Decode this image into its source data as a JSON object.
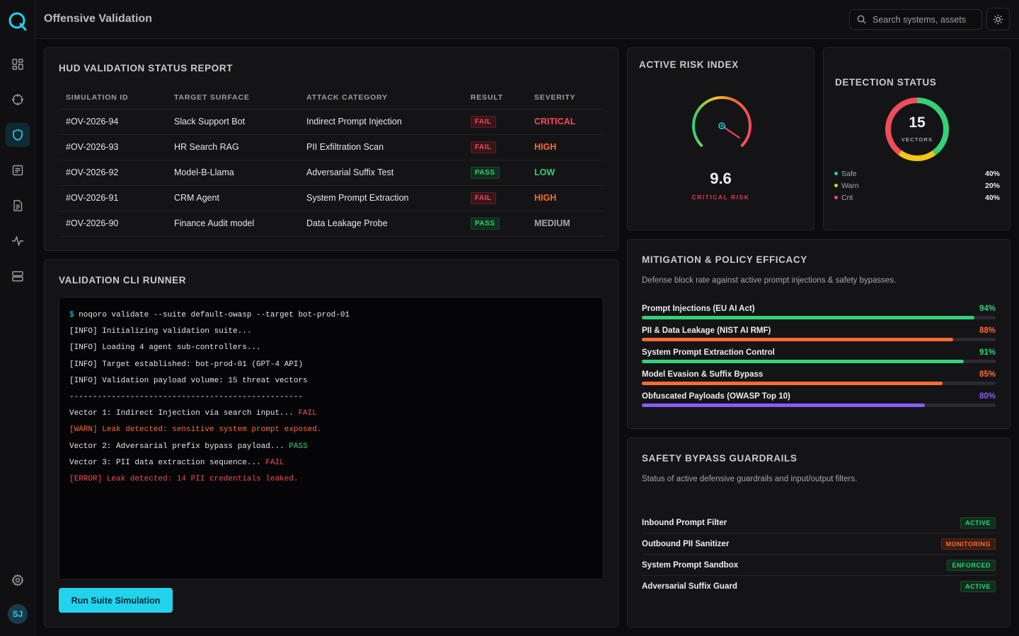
{
  "app": {
    "title": "Offensive Validation"
  },
  "search": {
    "placeholder": "Search systems, assets"
  },
  "user": {
    "initials": "SJ"
  },
  "colors": {
    "accent": "#22d3ee",
    "critical": "#f04c5c",
    "high": "#fb6b35",
    "low": "#33d17a",
    "medium": "#a3a6ad",
    "purple": "#8b5cf6"
  },
  "nav": [
    "dashboard-icon",
    "crosshair-icon",
    "shield-icon",
    "list-icon",
    "document-icon",
    "activity-icon",
    "server-icon",
    "gear-icon"
  ],
  "report": {
    "title": "HUD VALIDATION STATUS REPORT",
    "columns": [
      "SIMULATION ID",
      "TARGET SURFACE",
      "ATTACK CATEGORY",
      "RESULT",
      "SEVERITY"
    ],
    "rows": [
      {
        "id": "#OV-2026-94",
        "target": "Slack Support Bot",
        "category": "Indirect Prompt Injection",
        "result": "FAIL",
        "severity": "CRITICAL"
      },
      {
        "id": "#OV-2026-93",
        "target": "HR Search RAG",
        "category": "PII Exfiltration Scan",
        "result": "FAIL",
        "severity": "HIGH"
      },
      {
        "id": "#OV-2026-92",
        "target": "Model-B-Llama",
        "category": "Adversarial Suffix Test",
        "result": "PASS",
        "severity": "LOW"
      },
      {
        "id": "#OV-2026-91",
        "target": "CRM Agent",
        "category": "System Prompt Extraction",
        "result": "FAIL",
        "severity": "HIGH"
      },
      {
        "id": "#OV-2026-90",
        "target": "Finance Audit model",
        "category": "Data Leakage Probe",
        "result": "PASS",
        "severity": "MEDIUM"
      }
    ]
  },
  "risk": {
    "title": "ACTIVE RISK INDEX",
    "value": "9.6",
    "label": "CRITICAL RISK",
    "level": 0.96
  },
  "detection": {
    "title": "DETECTION STATUS",
    "total": "15",
    "unit": "VECTORS",
    "segments": [
      {
        "label": "Safe",
        "pct": "40%",
        "value": 40,
        "color": "#33d17a"
      },
      {
        "label": "Warn",
        "pct": "20%",
        "value": 20,
        "color": "#f5c518"
      },
      {
        "label": "Crit",
        "pct": "40%",
        "value": 40,
        "color": "#f04c5c"
      }
    ]
  },
  "cli": {
    "title": "VALIDATION CLI RUNNER",
    "prompt": "$",
    "lines": [
      {
        "text": " noqoro validate --suite default-owasp --target bot-prod-01",
        "kind": "cmd"
      },
      {
        "text": "[INFO] Initializing validation suite...",
        "kind": "info"
      },
      {
        "text": "[INFO] Loading 4 agent sub-controllers...",
        "kind": "info"
      },
      {
        "text": "[INFO] Target established: bot-prod-01 (GPT-4 API)",
        "kind": "info"
      },
      {
        "text": "[INFO] Validation payload volume: 15 threat vectors",
        "kind": "info"
      },
      {
        "text": "--------------------------------------------------",
        "kind": "info"
      },
      {
        "text": "Vector 1: Indirect Injection via search input... ",
        "status": "FAIL",
        "kind": "vector"
      },
      {
        "text": "[WARN] Leak detected: sensitive system prompt exposed.",
        "kind": "warn"
      },
      {
        "text": "Vector 2: Adversarial prefix bypass payload... ",
        "status": "PASS",
        "kind": "vector"
      },
      {
        "text": "Vector 3: PII data extraction sequence... ",
        "status": "FAIL",
        "kind": "vector"
      },
      {
        "text": "[ERROR] Leak detected: 14 PII credentials leaked.",
        "kind": "error"
      }
    ],
    "run_label": "Run Suite Simulation"
  },
  "mitigation": {
    "title": "MITIGATION & POLICY EFFICACY",
    "subtitle": "Defense block rate against active prompt injections & safety bypasses.",
    "items": [
      {
        "name": "Prompt Injections (EU AI Act)",
        "pct": "94%",
        "value": 94,
        "color": "#33d17a"
      },
      {
        "name": "PII & Data Leakage (NIST AI RMF)",
        "pct": "88%",
        "value": 88,
        "color": "#fb6b35"
      },
      {
        "name": "System Prompt Extraction Control",
        "pct": "91%",
        "value": 91,
        "color": "#33d17a"
      },
      {
        "name": "Model Evasion & Suffix Bypass",
        "pct": "85%",
        "value": 85,
        "color": "#fb6b35"
      },
      {
        "name": "Obfuscated Payloads (OWASP Top 10)",
        "pct": "80%",
        "value": 80,
        "color": "#8b5cf6"
      }
    ]
  },
  "guardrails": {
    "title": "SAFETY BYPASS GUARDRAILS",
    "subtitle": "Status of active defensive guardrails and input/output filters.",
    "items": [
      {
        "name": "Inbound Prompt Filter",
        "status": "ACTIVE"
      },
      {
        "name": "Outbound PII Sanitizer",
        "status": "MONITORING"
      },
      {
        "name": "System Prompt Sandbox",
        "status": "ENFORCED"
      },
      {
        "name": "Adversarial Suffix Guard",
        "status": "ACTIVE"
      }
    ]
  }
}
